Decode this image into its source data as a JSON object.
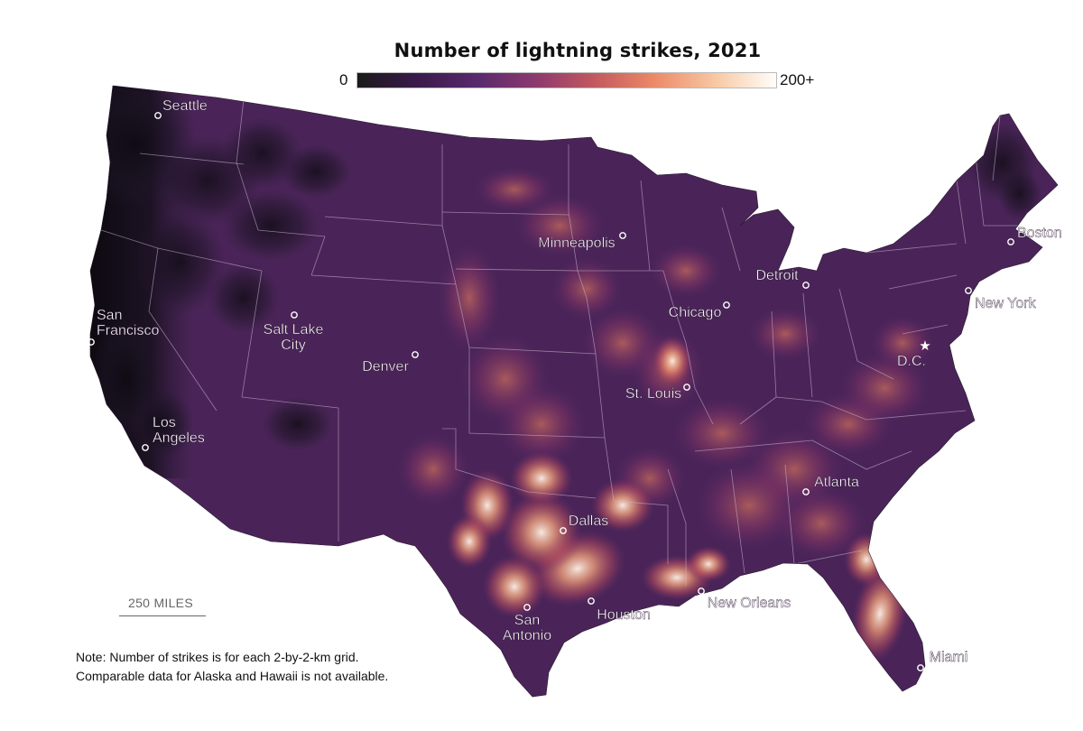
{
  "title": "Number of lightning strikes, 2021",
  "legend": {
    "min_label": "0",
    "max_label": "200+",
    "stops": [
      "#1a1a1a",
      "#3a1a4a",
      "#5a2a6e",
      "#8e3a6e",
      "#c45a5e",
      "#ec8a68",
      "#f8caa6",
      "#fffefb"
    ]
  },
  "colors": {
    "background": "#ffffff",
    "map_base": "#4a2458",
    "dark_low": "#15101a",
    "hot_orange": "#e0704e",
    "hot_white": "#ffe6cf",
    "state_borders": "#cdb9d6"
  },
  "scale_bar": {
    "label": "250 MILES"
  },
  "note": {
    "line1": "Note: Number of strikes is for each 2-by-2-km grid.",
    "line2": "Comparable data for Alaska and Hawaii is not available."
  },
  "cities": [
    {
      "name": "Seattle",
      "lines": [
        "Seattle"
      ]
    },
    {
      "name": "San Francisco",
      "lines": [
        "San",
        "Francisco"
      ]
    },
    {
      "name": "Los Angeles",
      "lines": [
        "Los",
        "Angeles"
      ]
    },
    {
      "name": "Salt Lake City",
      "lines": [
        "Salt Lake",
        "City"
      ]
    },
    {
      "name": "Denver",
      "lines": [
        "Denver"
      ]
    },
    {
      "name": "Minneapolis",
      "lines": [
        "Minneapolis"
      ]
    },
    {
      "name": "Chicago",
      "lines": [
        "Chicago"
      ]
    },
    {
      "name": "Detroit",
      "lines": [
        "Detroit"
      ]
    },
    {
      "name": "St. Louis",
      "lines": [
        "St. Louis"
      ]
    },
    {
      "name": "Boston",
      "lines": [
        "Boston"
      ]
    },
    {
      "name": "New York",
      "lines": [
        "New York"
      ]
    },
    {
      "name": "D.C.",
      "lines": [
        "D.C."
      ],
      "marker": "star"
    },
    {
      "name": "Atlanta",
      "lines": [
        "Atlanta"
      ]
    },
    {
      "name": "Dallas",
      "lines": [
        "Dallas"
      ]
    },
    {
      "name": "Houston",
      "lines": [
        "Houston"
      ]
    },
    {
      "name": "San Antonio",
      "lines": [
        "San",
        "Antonio"
      ]
    },
    {
      "name": "New Orleans",
      "lines": [
        "New Orleans"
      ]
    },
    {
      "name": "Miami",
      "lines": [
        "Miami"
      ]
    }
  ]
}
